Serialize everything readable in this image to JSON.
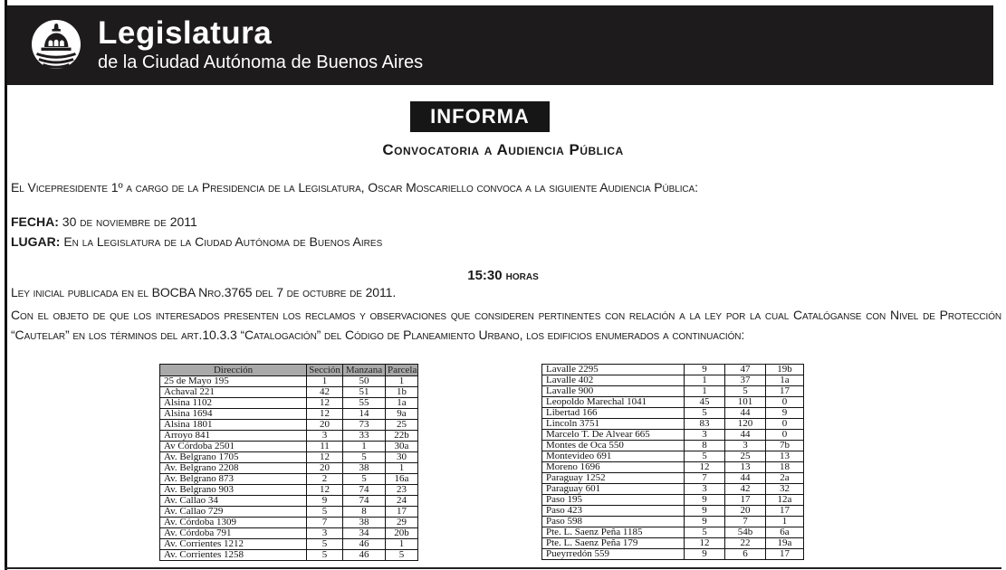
{
  "colors": {
    "header_bg": "#1d1b1b",
    "banner_bg": "#161616",
    "table_header_bg": "#aaa9a9"
  },
  "header": {
    "logo_icon": "legislatura-dome-logo",
    "title": "Legislatura",
    "subtitle": "de la Ciudad Autónoma de Buenos Aires"
  },
  "banner": {
    "label": "INFORMA"
  },
  "heading": "Convocatoria a Audiencia Pública",
  "intro": "El Vicepresidente 1º a cargo de la Presidencia de la Legislatura, Oscar Moscariello convoca a la siguiente Audiencia Pública:",
  "fecha": {
    "label": "FECHA:",
    "value": "30 de noviembre de 2011"
  },
  "lugar": {
    "label": "LUGAR:",
    "value": "En la Legislatura de la Ciudad Autónoma de Buenos Aires"
  },
  "time": {
    "value": "15:30",
    "suffix": "horas"
  },
  "law_line": "Ley inicial publicada en el BOCBA Nro.3765 del 7 de octubre de 2011.",
  "object_paragraph": "Con el objeto de que los interesados presenten los reclamos y observaciones que consideren pertinentes con relación a la ley por la cual Catalóganse con Nivel de Protección “Cautelar” en los términos del art.10.3.3 “Catalogación” del Código de Planeamiento Urbano, los edificios enumerados a continuación:",
  "left_table": {
    "headers": [
      "Dirección",
      "Sección",
      "Manzana",
      "Parcela"
    ],
    "rows": [
      [
        "25 de Mayo 195",
        "1",
        "50",
        "1"
      ],
      [
        "Achaval 221",
        "42",
        "51",
        "1b"
      ],
      [
        "Alsina 1102",
        "12",
        "55",
        "1a"
      ],
      [
        "Alsina 1694",
        "12",
        "14",
        "9a"
      ],
      [
        "Alsina 1801",
        "20",
        "73",
        "25"
      ],
      [
        "Arroyo 841",
        "3",
        "33",
        "22b"
      ],
      [
        "Av Córdoba 2501",
        "11",
        "1",
        "30a"
      ],
      [
        "Av. Belgrano 1705",
        "12",
        "5",
        "30"
      ],
      [
        "Av. Belgrano 2208",
        "20",
        "38",
        "1"
      ],
      [
        "Av. Belgrano 873",
        "2",
        "5",
        "16a"
      ],
      [
        "Av. Belgrano 903",
        "12",
        "74",
        "23"
      ],
      [
        "Av. Callao 34",
        "9",
        "74",
        "24"
      ],
      [
        "Av. Callao 729",
        "5",
        "8",
        "17"
      ],
      [
        "Av. Córdoba 1309",
        "7",
        "38",
        "29"
      ],
      [
        "Av. Córdoba 791",
        "3",
        "34",
        "20b"
      ],
      [
        "Av. Corrientes 1212",
        "5",
        "46",
        "1"
      ],
      [
        "Av. Corrientes 1258",
        "5",
        "46",
        "5"
      ]
    ]
  },
  "right_table": {
    "rows": [
      [
        "Lavalle 2295",
        "9",
        "47",
        "19b"
      ],
      [
        "Lavalle 402",
        "1",
        "37",
        "1a"
      ],
      [
        "Lavalle 900",
        "1",
        "5",
        "17"
      ],
      [
        "Leopoldo Marechal 1041",
        "45",
        "101",
        "0"
      ],
      [
        "Libertad 166",
        "5",
        "44",
        "9"
      ],
      [
        "Lincoln 3751",
        "83",
        "120",
        "0"
      ],
      [
        "Marcelo T. De Alvear 665",
        "3",
        "44",
        "0"
      ],
      [
        "Montes de Oca 550",
        "8",
        "3",
        "7b"
      ],
      [
        "Montevideo 691",
        "5",
        "25",
        "13"
      ],
      [
        "Moreno 1696",
        "12",
        "13",
        "18"
      ],
      [
        "Paraguay 1252",
        "7",
        "44",
        "2a"
      ],
      [
        "Paraguay 601",
        "3",
        "42",
        "32"
      ],
      [
        "Paso 195",
        "9",
        "17",
        "12a"
      ],
      [
        "Paso 423",
        "9",
        "20",
        "17"
      ],
      [
        "Paso 598",
        "9",
        "7",
        "1"
      ],
      [
        "Pte. L. Saenz Peña 1185",
        "5",
        "54b",
        "6a"
      ],
      [
        "Pte. L. Saenz Peña 179",
        "12",
        "22",
        "19a"
      ],
      [
        "Pueyrredón 559",
        "9",
        "6",
        "17"
      ]
    ]
  }
}
